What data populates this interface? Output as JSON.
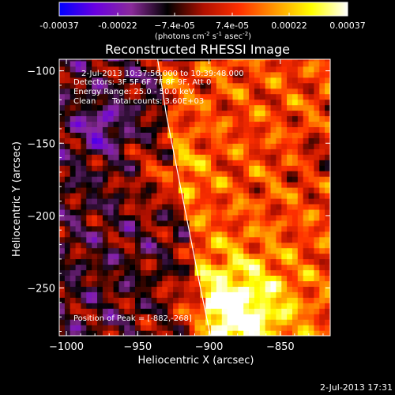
{
  "chart_data": {
    "type": "heatmap",
    "title": "Reconstructed RHESSI Image",
    "xlabel": "Heliocentric X (arcsec)",
    "ylabel": "Heliocentric Y (arcsec)",
    "xlim": [
      -1005,
      -815
    ],
    "ylim": [
      -283,
      -92
    ],
    "x_ticks": [
      -1000,
      -950,
      -900,
      -850
    ],
    "x_tick_labels": [
      "−1000",
      "−950",
      "−900",
      "−850"
    ],
    "y_ticks": [
      -100,
      -150,
      -200,
      -250
    ],
    "y_tick_labels": [
      "−100",
      "−150",
      "−200",
      "−250"
    ],
    "colorbar": {
      "range": [
        -0.00037,
        0.00037
      ],
      "ticks": [
        -0.00037,
        -0.00022,
        -7.4e-05,
        7.4e-05,
        0.00022,
        0.00037
      ],
      "tick_labels": [
        "-0.00037",
        "-0.00022",
        "−7.4e-05",
        "7.4e-05",
        "0.00022",
        "0.00037"
      ],
      "units_parts": [
        "(photons cm",
        "-2",
        " s",
        "-1",
        " asec",
        "-2",
        ")"
      ],
      "colormap": [
        "#0000ff",
        "#6a00e0",
        "#8a2a9a",
        "#000000",
        "#b01000",
        "#ff3000",
        "#ff9a00",
        "#ffff00",
        "#ffffff"
      ]
    },
    "annotations": {
      "time_range": "2-Jul-2013 10:37:56.000 to 10:39:48.000",
      "detectors": "Detectors: 3F 5F 6F 7F 8F 9F, Att 0",
      "energy": "Energy Range: 25.0 - 50.0 keV",
      "clean": "Clean",
      "total_counts": "Total counts: 3.60E+03",
      "peak": "Position of Peak = [-882,-268]"
    },
    "limb": {
      "points": [
        [
          -936,
          -92
        ],
        [
          -930,
          -130
        ],
        [
          -922,
          -170
        ],
        [
          -914,
          -210
        ],
        [
          -906,
          -250
        ],
        [
          -899,
          -283
        ]
      ],
      "color": "#ffffff"
    },
    "features": {
      "bright_source_center": [
        -882,
        -268
      ],
      "bright_source_value": 0.00037
    }
  },
  "footer": {
    "timestamp": "2-Jul-2013 17:31"
  }
}
